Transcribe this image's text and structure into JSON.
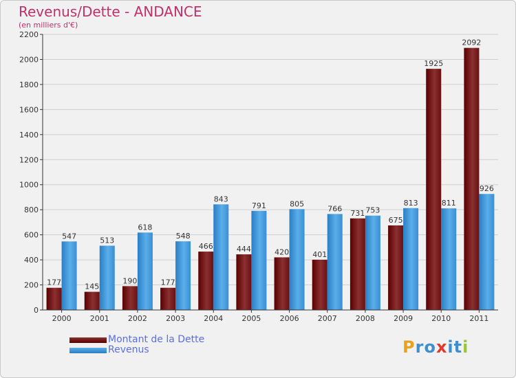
{
  "title": "Revenus/Dette - ANDANCE",
  "subtitle": "(en milliers d'€)",
  "logo": {
    "chars": [
      "P",
      "r",
      "o",
      "x",
      "i",
      "t",
      "i"
    ],
    "colors": [
      "#e8a21c",
      "#3f8fd0",
      "#3f8fd0",
      "#e03a2c",
      "#3f8fd0",
      "#3f8fd0",
      "#9bc43a"
    ]
  },
  "colors": {
    "debt_dark": "#5a0000",
    "debt_light": "#8a3030",
    "rev_dark": "#2a7fc4",
    "rev_light": "#5aaeea",
    "legend_text": "#5a6fe0",
    "title": "#c0306a"
  },
  "chart_data": {
    "type": "bar",
    "title": "Revenus/Dette - ANDANCE",
    "ylabel": "(en milliers d'€)",
    "xlabel": "",
    "categories": [
      "2000",
      "2001",
      "2002",
      "2003",
      "2004",
      "2005",
      "2006",
      "2007",
      "2008",
      "2009",
      "2010",
      "2011"
    ],
    "ylim": [
      0,
      2200
    ],
    "yticks": [
      0,
      200,
      400,
      600,
      800,
      1000,
      1200,
      1400,
      1600,
      1800,
      2000,
      2200
    ],
    "grid": true,
    "legend_position": "bottom-left",
    "series": [
      {
        "name": "Montant de la Dette",
        "values": [
          177,
          145,
          190,
          177,
          466,
          444,
          420,
          401,
          731,
          675,
          1925,
          2092
        ]
      },
      {
        "name": "Revenus",
        "values": [
          547,
          513,
          618,
          548,
          843,
          791,
          805,
          766,
          753,
          813,
          811,
          926
        ]
      }
    ]
  }
}
